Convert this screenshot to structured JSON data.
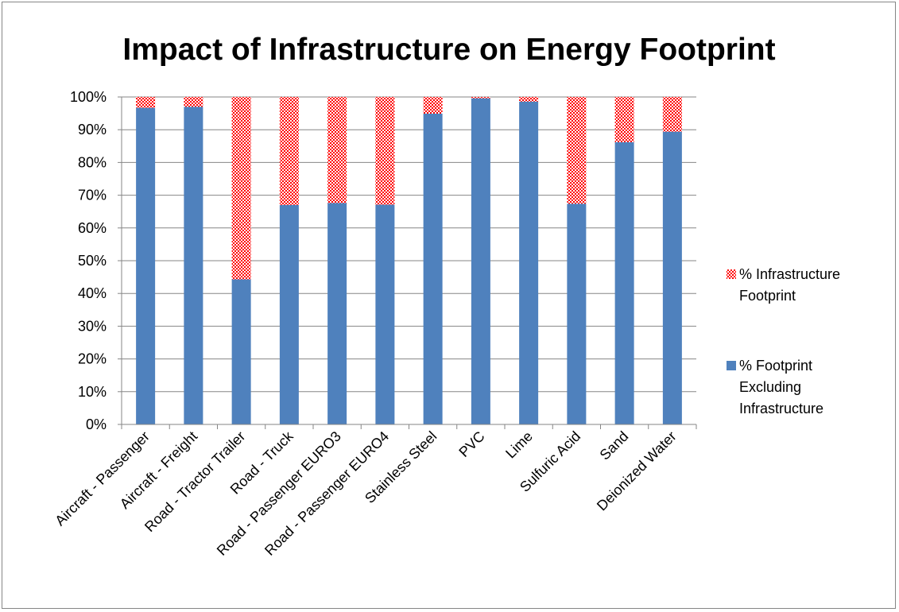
{
  "chart_data": {
    "type": "bar",
    "stacked": true,
    "title": "Impact of Infrastructure on Energy Footprint",
    "xlabel": "",
    "ylabel": "",
    "ylim": [
      0,
      100
    ],
    "y_tick_values": [
      0,
      10,
      20,
      30,
      40,
      50,
      60,
      70,
      80,
      90,
      100
    ],
    "y_tick_labels": [
      "0%",
      "10%",
      "20%",
      "30%",
      "40%",
      "50%",
      "60%",
      "70%",
      "80%",
      "90%",
      "100%"
    ],
    "grid": true,
    "legend_position": "right",
    "categories": [
      "Aircraft - Passenger",
      "Aircraft - Freight",
      "Road - Tractor Trailer",
      "Road - Truck",
      "Road - Passenger EURO3",
      "Road - Passenger EURO4",
      "Stainless Steel",
      "PVC",
      "Lime",
      "Sulfuric Acid",
      "Sand",
      "Deionized Water"
    ],
    "series": [
      {
        "name": "% Footprint Excluding Infrastructure",
        "color": "#4f81bd",
        "pattern": "solid",
        "values": [
          96.7,
          97,
          44.3,
          67,
          67.6,
          67.1,
          94.9,
          99.6,
          98.6,
          67.4,
          86.2,
          89.4
        ]
      },
      {
        "name": "% Infrastructure Footprint",
        "color": "#ff0000",
        "pattern": "dotted",
        "values": [
          3.3,
          3,
          55.7,
          33,
          32.4,
          32.9,
          5.1,
          0.4,
          1.4,
          32.6,
          13.8,
          10.6
        ]
      }
    ],
    "legend": [
      {
        "series_index": 1,
        "lines": [
          "% Infrastructure",
          "Footprint"
        ]
      },
      {
        "series_index": 0,
        "lines": [
          "% Footprint",
          "Excluding",
          "Infrastructure"
        ]
      }
    ]
  }
}
